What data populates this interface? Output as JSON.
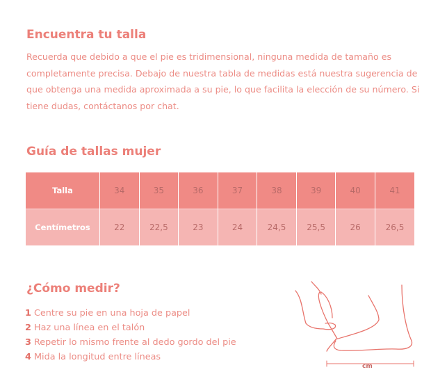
{
  "intro": {
    "title": "Encuentra tu talla",
    "text": "Recuerda que debido a que el pie es tridimensional, ninguna medida de tamaño es completamente precisa. Debajo de nuestra tabla de medidas está nuestra sugerencia de que obtenga una medida aproximada a su pie, lo que facilita la elección de su número. Si tiene dudas, contáctanos por chat."
  },
  "guide": {
    "title": "Guía de tallas mujer",
    "row1_label": "Talla",
    "row2_label": "Centímetros",
    "sizes": [
      "34",
      "35",
      "36",
      "37",
      "38",
      "39",
      "40",
      "41"
    ],
    "cm": [
      "22",
      "22,5",
      "23",
      "24",
      "24,5",
      "25,5",
      "26",
      "26,5"
    ]
  },
  "measure": {
    "title": "¿Cómo medir?",
    "steps": [
      {
        "n": "1",
        "text": "Centre su pie en una hoja de papel"
      },
      {
        "n": "2",
        "text": "Haz una línea en el talón"
      },
      {
        "n": "3",
        "text": "Repetir lo mismo frente al dedo gordo del pie"
      },
      {
        "n": "4",
        "text": "Mida la longitud entre líneas"
      }
    ],
    "unit": "cm"
  },
  "colors": {
    "accent": "#ec8079",
    "header_row": "#f08a85",
    "data_row": "#f5b5b3"
  }
}
